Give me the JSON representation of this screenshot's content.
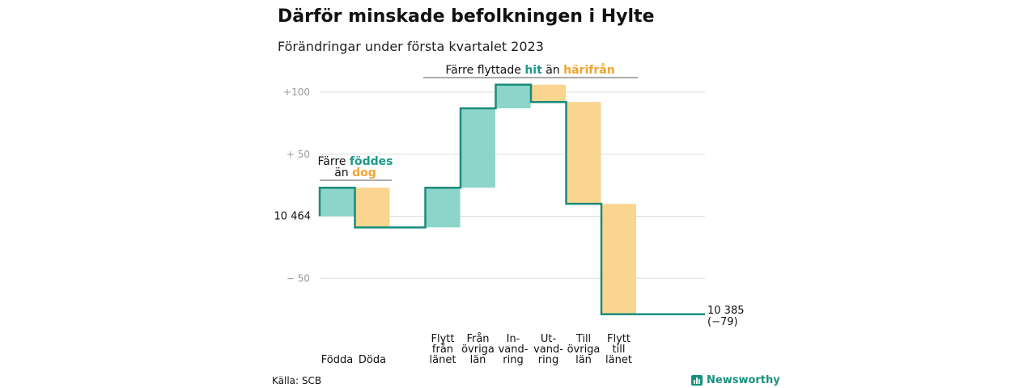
{
  "title": "Därför minskade befolkningen i Hylte",
  "subtitle": "Förändringar under första kvartalet 2023",
  "source": "Källa: SCB",
  "brand": "Newsworthy",
  "colors": {
    "increase": "#8dd5ca",
    "decrease": "#fad58f",
    "line": "#1a8c7c",
    "grid": "#dddddd",
    "teal_text": "#1a9a8a",
    "orange_text": "#f0a530"
  },
  "chart_data": {
    "type": "waterfall",
    "baseline_value": 10464,
    "baseline_label": "10 464",
    "end_value": 10385,
    "end_label": "10 385",
    "end_change_label": "(−79)",
    "y_ticks": [
      {
        "value": 100,
        "label": "+100"
      },
      {
        "value": 50,
        "label": "+ 50"
      },
      {
        "value": -50,
        "label": "− 50"
      }
    ],
    "ylim": [
      -85,
      105
    ],
    "steps": [
      {
        "label_lines": [
          "Födda"
        ],
        "change": 23,
        "sign": "increase"
      },
      {
        "label_lines": [
          "Döda"
        ],
        "change": -32,
        "sign": "decrease"
      },
      {
        "label_lines": [],
        "change": 0,
        "sign": "gap"
      },
      {
        "label_lines": [
          "Flytt",
          "från",
          "länet"
        ],
        "change": 32,
        "sign": "increase"
      },
      {
        "label_lines": [
          "Från",
          "övriga",
          "län"
        ],
        "change": 64,
        "sign": "increase"
      },
      {
        "label_lines": [
          "In-",
          "vand-",
          "ring"
        ],
        "change": 19,
        "sign": "increase"
      },
      {
        "label_lines": [
          "Ut-",
          "vand-",
          "ring"
        ],
        "change": -14,
        "sign": "decrease"
      },
      {
        "label_lines": [
          "Till",
          "övriga",
          "län"
        ],
        "change": -82,
        "sign": "decrease"
      },
      {
        "label_lines": [
          "Flytt",
          "till",
          "länet"
        ],
        "change": -89,
        "sign": "decrease"
      }
    ],
    "annotations": [
      {
        "parts": [
          {
            "text": "Färre ",
            "style": "plain"
          },
          {
            "text": "föddes",
            "style": "teal"
          }
        ],
        "parts2": [
          {
            "text": "än ",
            "style": "plain"
          },
          {
            "text": "dog",
            "style": "orange"
          }
        ]
      },
      {
        "parts": [
          {
            "text": "Färre flyttade ",
            "style": "plain"
          },
          {
            "text": "hit",
            "style": "teal"
          },
          {
            "text": " än ",
            "style": "plain"
          },
          {
            "text": "härifrån",
            "style": "orange"
          }
        ]
      }
    ]
  }
}
